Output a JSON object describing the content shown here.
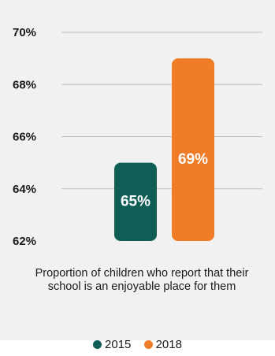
{
  "chart_data": {
    "type": "bar",
    "categories": [
      "2015",
      "2018"
    ],
    "values": [
      65,
      69
    ],
    "data_labels": [
      "65%",
      "69%"
    ],
    "ylim": [
      62,
      70
    ],
    "yticks": [
      62,
      64,
      66,
      68,
      70
    ],
    "ytick_labels": [
      "62%",
      "64%",
      "66%",
      "68%",
      "70%"
    ],
    "grid": true,
    "colors": [
      "#0e5e55",
      "#f07c28"
    ],
    "caption": "Proportion of children who report that their school is an enjoyable place for them",
    "legend": [
      {
        "label": "2015",
        "color": "#0e5e55"
      },
      {
        "label": "2018",
        "color": "#f07c28"
      }
    ],
    "legend_position": "bottom"
  }
}
